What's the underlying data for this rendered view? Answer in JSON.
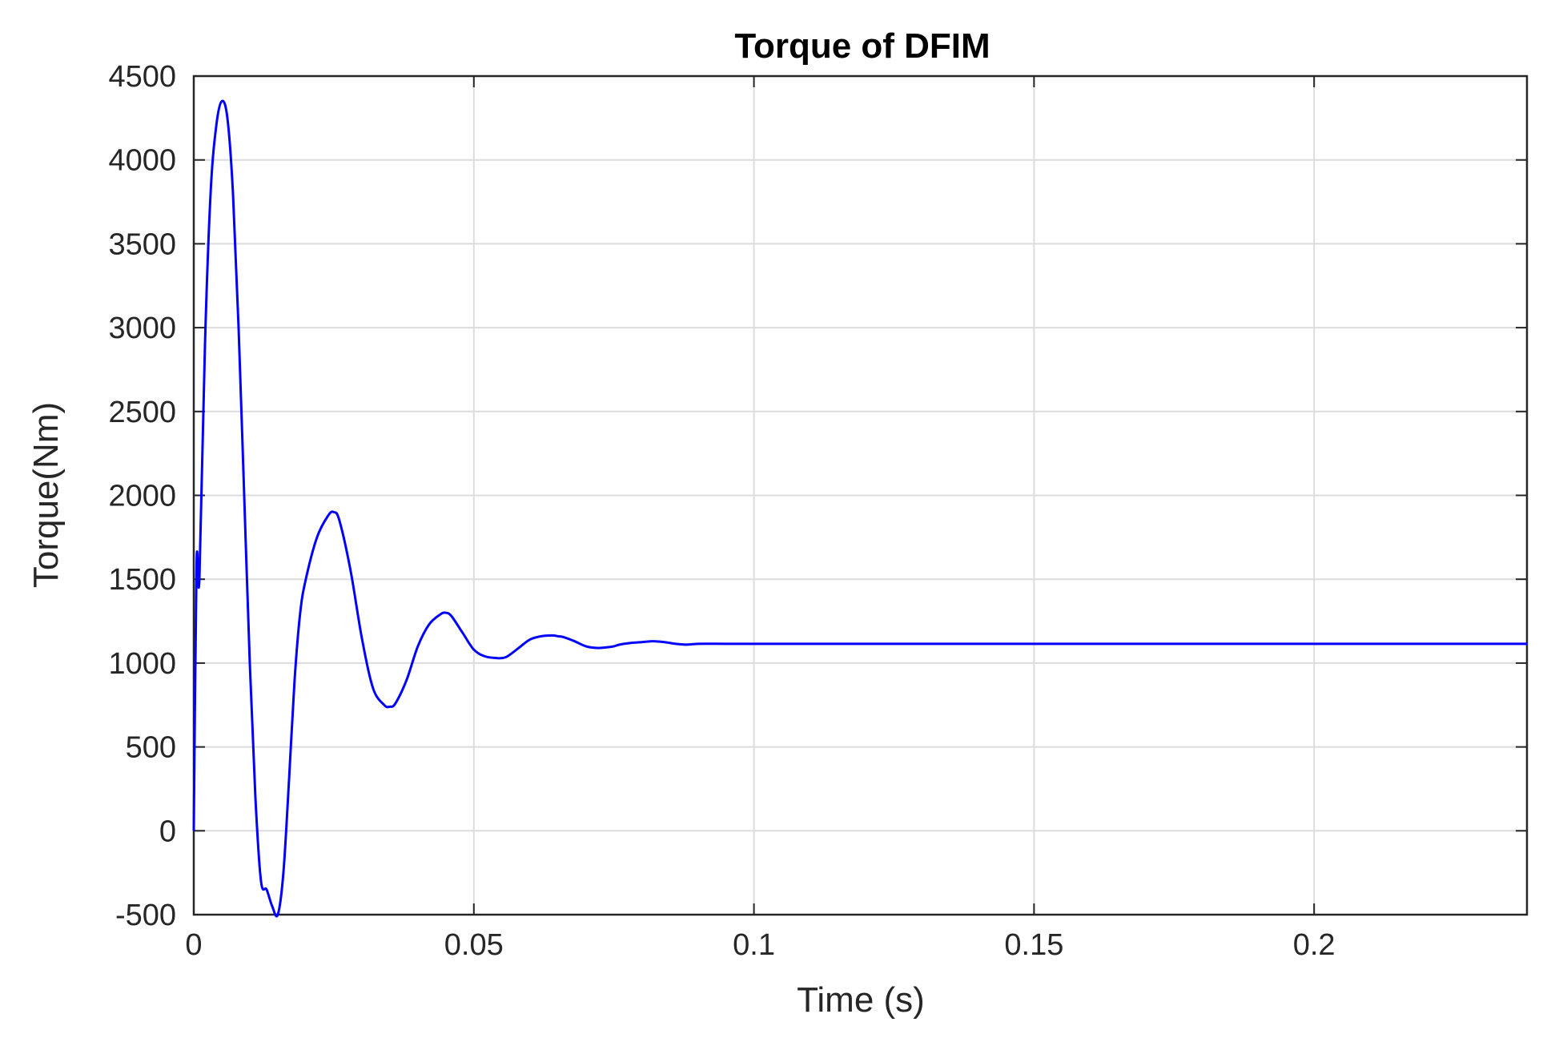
{
  "chart_data": {
    "type": "line",
    "title": "Torque of DFIM",
    "xlabel": "Time (s)",
    "ylabel": "Torque(Nm)",
    "xlim": [
      0,
      0.238
    ],
    "ylim": [
      -500,
      4500
    ],
    "xticks": [
      0,
      0.05,
      0.1,
      0.15,
      0.2
    ],
    "xtick_labels": [
      "0",
      "0.05",
      "0.1",
      "0.15",
      "0.2"
    ],
    "yticks": [
      -500,
      0,
      500,
      1000,
      1500,
      2000,
      2500,
      3000,
      3500,
      4000,
      4500
    ],
    "ytick_labels": [
      "-500",
      "0",
      "500",
      "1000",
      "1500",
      "2000",
      "2500",
      "3000",
      "3500",
      "4000",
      "4500"
    ],
    "grid": true,
    "colors": {
      "series": "#0000ff",
      "axes": "#262626",
      "grid": "#dcdcdc"
    },
    "series": [
      {
        "x": [
          0,
          0.0005,
          0.001,
          0.002,
          0.003,
          0.004,
          0.005,
          0.006,
          0.007,
          0.008,
          0.009,
          0.01,
          0.011,
          0.012,
          0.013,
          0.014,
          0.015,
          0.016,
          0.017,
          0.018,
          0.019,
          0.02,
          0.022,
          0.024,
          0.025,
          0.026,
          0.028,
          0.03,
          0.032,
          0.034,
          0.035,
          0.036,
          0.038,
          0.04,
          0.042,
          0.044,
          0.045,
          0.046,
          0.048,
          0.05,
          0.052,
          0.054,
          0.055,
          0.056,
          0.058,
          0.06,
          0.062,
          0.064,
          0.065,
          0.066,
          0.068,
          0.07,
          0.072,
          0.074,
          0.075,
          0.076,
          0.078,
          0.08,
          0.082,
          0.084,
          0.085,
          0.086,
          0.088,
          0.09,
          0.095,
          0.1,
          0.12,
          0.15,
          0.2,
          0.238
        ],
        "y": [
          0,
          1600,
          1500,
          2900,
          3800,
          4200,
          4350,
          4250,
          3800,
          3000,
          2000,
          1000,
          200,
          -300,
          -350,
          -450,
          -500,
          -250,
          300,
          900,
          1300,
          1500,
          1750,
          1880,
          1900,
          1850,
          1550,
          1150,
          850,
          750,
          740,
          760,
          900,
          1100,
          1230,
          1290,
          1300,
          1280,
          1180,
          1080,
          1040,
          1030,
          1030,
          1040,
          1090,
          1140,
          1160,
          1165,
          1160,
          1155,
          1130,
          1100,
          1090,
          1095,
          1100,
          1110,
          1120,
          1125,
          1130,
          1125,
          1120,
          1115,
          1110,
          1115,
          1115,
          1115,
          1115,
          1115,
          1115,
          1115
        ]
      }
    ]
  }
}
